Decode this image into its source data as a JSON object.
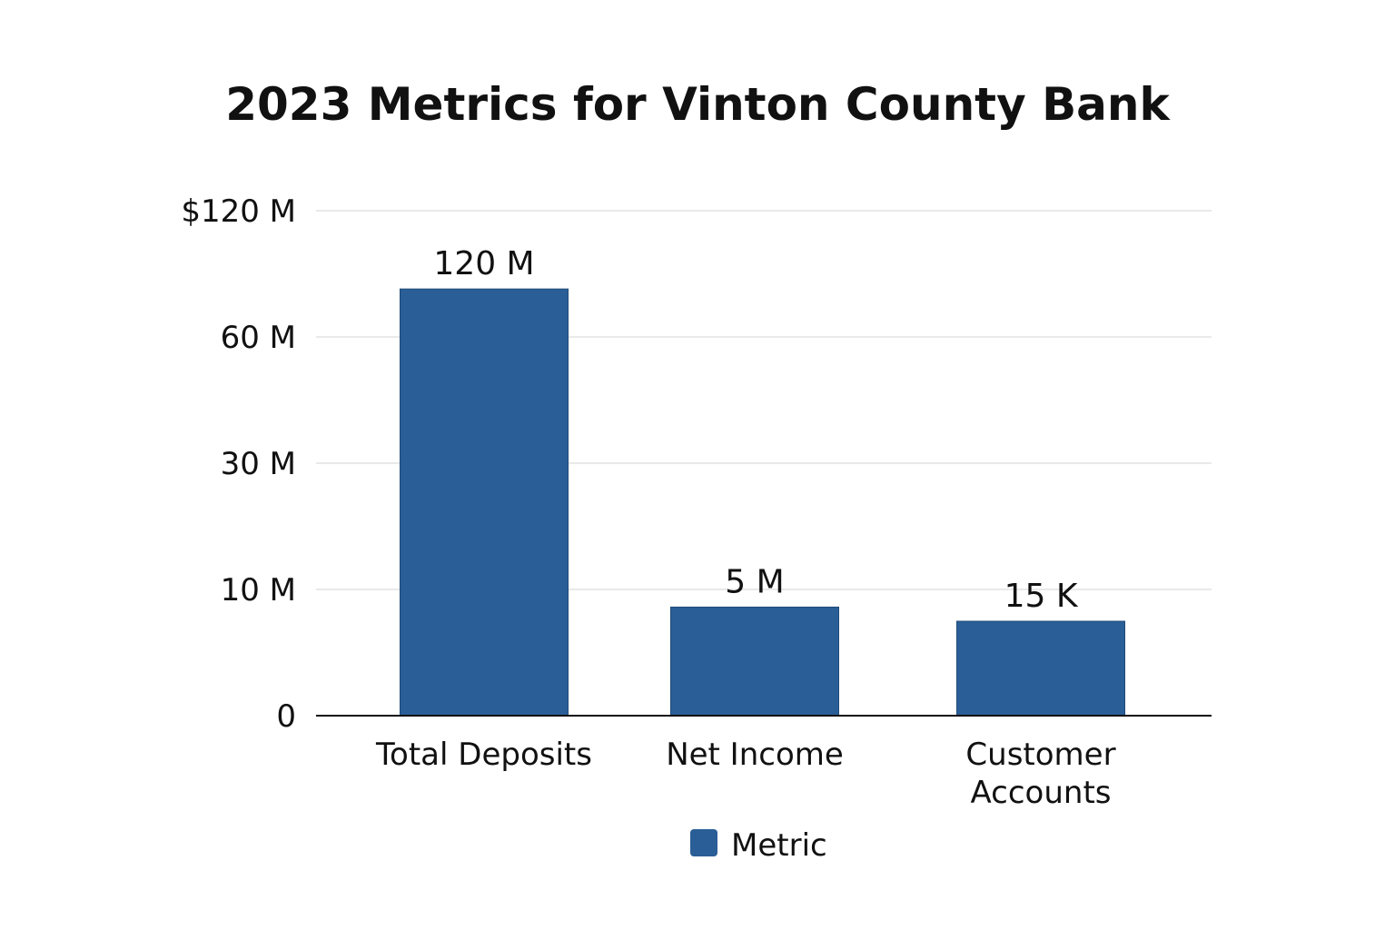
{
  "chart_data": {
    "type": "bar",
    "title": "2023 Metrics for Vinton County Bank",
    "xlabel": "",
    "ylabel": "",
    "y_ticks": [
      {
        "value": 0,
        "label": "0"
      },
      {
        "value": 10000000,
        "label": "10 M"
      },
      {
        "value": 30000000,
        "label": "30 M"
      },
      {
        "value": 60000000,
        "label": "60 M"
      },
      {
        "value": 120000000,
        "label": "$120 M"
      }
    ],
    "y_scale": "non-linear (ticks evenly spaced)",
    "grid": true,
    "legend_position": "bottom-center",
    "categories": [
      {
        "lines": [
          "Total Deposits"
        ]
      },
      {
        "lines": [
          "Net Income"
        ]
      },
      {
        "lines": [
          "Customer",
          "Accounts"
        ]
      }
    ],
    "series": [
      {
        "name": "Metric",
        "color": "#2a5e96",
        "values": [
          120000000,
          5000000,
          15000
        ],
        "data_labels": [
          "120 M",
          "5 M",
          "15 K"
        ],
        "displayed_level": [
          0.845,
          0.215,
          0.187
        ]
      }
    ]
  }
}
